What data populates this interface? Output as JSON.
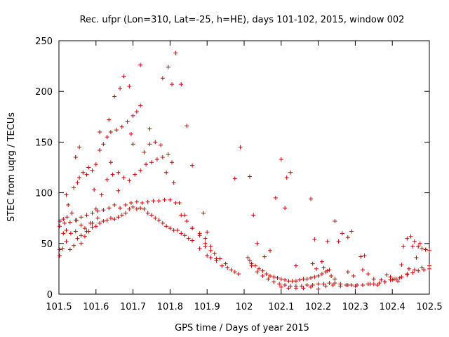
{
  "chart_data": {
    "type": "scatter",
    "title": "Rec. ufpr (Lon=310, Lat=-25, h=HE), days 101-102, 2015, window 002",
    "xlabel": "GPS time / Days of year 2015",
    "ylabel": "STEC from uqrg / TECUs",
    "xlim": [
      101.5,
      102.5
    ],
    "ylim": [
      0,
      250
    ],
    "xticks": [
      "101.5",
      "101.6",
      "101.7",
      "101.8",
      "101.9",
      "102",
      "102.1",
      "102.2",
      "102.3",
      "102.4",
      "102.5"
    ],
    "yticks": [
      "0",
      "50",
      "100",
      "150",
      "200",
      "250"
    ],
    "grid": false,
    "marker": "+",
    "color": "#cc0000",
    "series": [
      {
        "points": [
          [
            101.502,
            38
          ],
          [
            101.51,
            45
          ],
          [
            101.52,
            52
          ],
          [
            101.53,
            44
          ],
          [
            101.54,
            48
          ],
          [
            101.55,
            55
          ],
          [
            101.56,
            50
          ],
          [
            101.57,
            57
          ],
          [
            101.58,
            62
          ],
          [
            101.59,
            66
          ],
          [
            101.6,
            67
          ],
          [
            101.61,
            70
          ],
          [
            101.62,
            72
          ],
          [
            101.63,
            73
          ],
          [
            101.64,
            75
          ],
          [
            101.65,
            74
          ],
          [
            101.66,
            76
          ],
          [
            101.67,
            78
          ],
          [
            101.68,
            80
          ],
          [
            101.69,
            84
          ],
          [
            101.7,
            86
          ],
          [
            101.71,
            84
          ],
          [
            101.72,
            85
          ],
          [
            101.73,
            84
          ],
          [
            101.74,
            80
          ],
          [
            101.75,
            78
          ],
          [
            101.76,
            75
          ],
          [
            101.77,
            73
          ],
          [
            101.78,
            70
          ],
          [
            101.79,
            67
          ],
          [
            101.8,
            65
          ],
          [
            101.81,
            63
          ],
          [
            101.82,
            63
          ],
          [
            101.83,
            60
          ],
          [
            101.84,
            58
          ],
          [
            101.85,
            55
          ],
          [
            101.86,
            53
          ],
          [
            101.88,
            45
          ],
          [
            101.9,
            38
          ],
          [
            101.91,
            36
          ],
          [
            101.925,
            33
          ],
          [
            101.94,
            28
          ],
          [
            101.955,
            26
          ],
          [
            101.965,
            24
          ],
          [
            101.975,
            22
          ],
          [
            101.985,
            20
          ],
          [
            101.502,
            67
          ],
          [
            101.515,
            70
          ],
          [
            101.53,
            71
          ],
          [
            101.545,
            73
          ],
          [
            101.56,
            76
          ],
          [
            101.575,
            78
          ],
          [
            101.59,
            80
          ],
          [
            101.605,
            82
          ],
          [
            101.62,
            83
          ],
          [
            101.635,
            85
          ],
          [
            101.65,
            88
          ],
          [
            101.665,
            85
          ],
          [
            101.68,
            88
          ],
          [
            101.695,
            90
          ],
          [
            101.71,
            91
          ],
          [
            101.725,
            90
          ],
          [
            101.74,
            91
          ],
          [
            101.755,
            92
          ],
          [
            101.77,
            92
          ],
          [
            101.785,
            93
          ],
          [
            101.8,
            93
          ],
          [
            101.815,
            90
          ],
          [
            101.83,
            78
          ],
          [
            101.845,
            72
          ],
          [
            101.86,
            65
          ],
          [
            101.88,
            58
          ],
          [
            101.895,
            50
          ],
          [
            101.91,
            43
          ],
          [
            101.92,
            40
          ],
          [
            101.935,
            35
          ],
          [
            101.95,
            30
          ],
          [
            101.503,
            72
          ],
          [
            101.512,
            74
          ],
          [
            101.522,
            76
          ],
          [
            101.535,
            80
          ],
          [
            101.548,
            73
          ],
          [
            101.56,
            68
          ],
          [
            101.57,
            65
          ],
          [
            101.585,
            70
          ],
          [
            101.6,
            84
          ],
          [
            101.615,
            98
          ],
          [
            101.63,
            113
          ],
          [
            101.645,
            118
          ],
          [
            101.66,
            120
          ],
          [
            101.675,
            115
          ],
          [
            101.69,
            112
          ],
          [
            101.705,
            118
          ],
          [
            101.72,
            122
          ],
          [
            101.735,
            128
          ],
          [
            101.75,
            130
          ],
          [
            101.765,
            133
          ],
          [
            101.78,
            135
          ],
          [
            101.795,
            138
          ],
          [
            101.81,
            110
          ],
          [
            101.825,
            90
          ],
          [
            101.84,
            78
          ],
          [
            101.86,
            65
          ],
          [
            101.88,
            60
          ],
          [
            101.895,
            55
          ],
          [
            101.525,
            88
          ],
          [
            101.54,
            105
          ],
          [
            101.55,
            110
          ],
          [
            101.555,
            115
          ],
          [
            101.565,
            120
          ],
          [
            101.58,
            125
          ],
          [
            101.59,
            122
          ],
          [
            101.6,
            128
          ],
          [
            101.61,
            142
          ],
          [
            101.62,
            148
          ],
          [
            101.63,
            155
          ],
          [
            101.64,
            160
          ],
          [
            101.655,
            162
          ],
          [
            101.67,
            165
          ],
          [
            101.685,
            170
          ],
          [
            101.7,
            176
          ],
          [
            101.71,
            180
          ],
          [
            101.72,
            186
          ],
          [
            101.545,
            135
          ],
          [
            101.555,
            145
          ],
          [
            101.61,
            160
          ],
          [
            101.635,
            172
          ],
          [
            101.65,
            195
          ],
          [
            101.665,
            203
          ],
          [
            101.675,
            215
          ],
          [
            101.69,
            205
          ],
          [
            101.72,
            226
          ],
          [
            101.78,
            213
          ],
          [
            101.795,
            224
          ],
          [
            101.805,
            207
          ],
          [
            101.815,
            238
          ],
          [
            101.83,
            207
          ],
          [
            101.845,
            166
          ],
          [
            101.86,
            127
          ],
          [
            101.52,
            98
          ],
          [
            101.575,
            118
          ],
          [
            101.595,
            103
          ],
          [
            101.64,
            130
          ],
          [
            101.66,
            102
          ],
          [
            101.695,
            158
          ],
          [
            101.7,
            148
          ],
          [
            101.745,
            163
          ],
          [
            101.76,
            150
          ],
          [
            101.775,
            147
          ],
          [
            101.79,
            120
          ],
          [
            101.805,
            130
          ],
          [
            101.745,
            148
          ],
          [
            101.73,
            140
          ],
          [
            101.502,
            44
          ],
          [
            101.512,
            60
          ],
          [
            101.52,
            63
          ],
          [
            101.532,
            60
          ],
          [
            101.545,
            62
          ],
          [
            101.56,
            58
          ],
          [
            101.575,
            62
          ],
          [
            101.59,
            70
          ],
          [
            101.605,
            75
          ],
          [
            101.89,
            80
          ],
          [
            101.9,
            61
          ],
          [
            101.895,
            47
          ],
          [
            101.91,
            47
          ],
          [
            101.925,
            35
          ],
          [
            101.975,
            114
          ],
          [
            101.99,
            145
          ],
          [
            102.015,
            116
          ],
          [
            102.025,
            78
          ],
          [
            102.035,
            50
          ],
          [
            102.055,
            37
          ],
          [
            102.07,
            43
          ],
          [
            102.085,
            95
          ],
          [
            102.1,
            133
          ],
          [
            102.11,
            85
          ],
          [
            102.115,
            115
          ],
          [
            102.125,
            120
          ],
          [
            102.14,
            28
          ],
          [
            102.18,
            94
          ],
          [
            102.19,
            54
          ],
          [
            102.225,
            52
          ],
          [
            102.245,
            72
          ],
          [
            102.255,
            52
          ],
          [
            102.265,
            60
          ],
          [
            102.28,
            56
          ],
          [
            102.29,
            62
          ],
          [
            102.315,
            37
          ],
          [
            102.325,
            38
          ],
          [
            102.43,
            47
          ],
          [
            102.44,
            55
          ],
          [
            102.45,
            57
          ],
          [
            102.46,
            52
          ],
          [
            102.47,
            47
          ],
          [
            102.48,
            45
          ],
          [
            102.49,
            44
          ],
          [
            102.5,
            43
          ],
          [
            102.01,
            36
          ],
          [
            102.015,
            33
          ],
          [
            102.02,
            30
          ],
          [
            102.03,
            28
          ],
          [
            102.04,
            25
          ],
          [
            102.05,
            23
          ],
          [
            102.06,
            20
          ],
          [
            102.07,
            18
          ],
          [
            102.08,
            17
          ],
          [
            102.09,
            16
          ],
          [
            102.1,
            15
          ],
          [
            102.11,
            14
          ],
          [
            102.12,
            13
          ],
          [
            102.13,
            13
          ],
          [
            102.14,
            13
          ],
          [
            102.15,
            14
          ],
          [
            102.16,
            15
          ],
          [
            102.17,
            15
          ],
          [
            102.18,
            16
          ],
          [
            102.19,
            17
          ],
          [
            102.2,
            18
          ],
          [
            102.21,
            20
          ],
          [
            102.22,
            22
          ],
          [
            102.23,
            24
          ],
          [
            102.02,
            28
          ],
          [
            102.035,
            22
          ],
          [
            102.05,
            18
          ],
          [
            102.065,
            15
          ],
          [
            102.08,
            12
          ],
          [
            102.095,
            10
          ],
          [
            102.11,
            9
          ],
          [
            102.125,
            8
          ],
          [
            102.14,
            8
          ],
          [
            102.155,
            8
          ],
          [
            102.17,
            9
          ],
          [
            102.185,
            9
          ],
          [
            102.2,
            10
          ],
          [
            102.215,
            10
          ],
          [
            102.23,
            11
          ],
          [
            102.245,
            11
          ],
          [
            102.26,
            10
          ],
          [
            102.275,
            9
          ],
          [
            102.29,
            9
          ],
          [
            102.305,
            9
          ],
          [
            102.32,
            9
          ],
          [
            102.335,
            10
          ],
          [
            102.35,
            10
          ],
          [
            102.365,
            11
          ],
          [
            102.38,
            12
          ],
          [
            102.395,
            14
          ],
          [
            102.41,
            15
          ],
          [
            102.425,
            17
          ],
          [
            102.44,
            19
          ],
          [
            102.455,
            21
          ],
          [
            102.47,
            23
          ],
          [
            102.485,
            24
          ],
          [
            102.5,
            25
          ],
          [
            102.1,
            7
          ],
          [
            102.12,
            6
          ],
          [
            102.14,
            6
          ],
          [
            102.16,
            6
          ],
          [
            102.18,
            7
          ],
          [
            102.2,
            5
          ],
          [
            102.22,
            8
          ],
          [
            102.24,
            9
          ],
          [
            102.26,
            8
          ],
          [
            102.28,
            9
          ],
          [
            102.3,
            8
          ],
          [
            102.32,
            9
          ],
          [
            102.34,
            10
          ],
          [
            102.36,
            9
          ],
          [
            102.38,
            12
          ],
          [
            102.4,
            14
          ],
          [
            102.42,
            16
          ],
          [
            102.44,
            20
          ],
          [
            102.46,
            24
          ],
          [
            102.48,
            26
          ],
          [
            102.5,
            28
          ],
          [
            102.185,
            30
          ],
          [
            102.195,
            25
          ],
          [
            102.21,
            32
          ],
          [
            102.215,
            26
          ],
          [
            102.225,
            23
          ],
          [
            102.235,
            18
          ],
          [
            102.245,
            15
          ],
          [
            102.28,
            22
          ],
          [
            102.295,
            18
          ],
          [
            102.32,
            24
          ],
          [
            102.335,
            20
          ],
          [
            102.35,
            15
          ],
          [
            102.37,
            14
          ],
          [
            102.385,
            19
          ],
          [
            102.395,
            17
          ],
          [
            102.405,
            15
          ],
          [
            102.415,
            13
          ],
          [
            102.425,
            29
          ],
          [
            102.445,
            25
          ],
          [
            102.455,
            47
          ],
          [
            102.465,
            36
          ],
          [
            102.475,
            50
          ],
          [
            102.49,
            44
          ]
        ]
      }
    ]
  }
}
